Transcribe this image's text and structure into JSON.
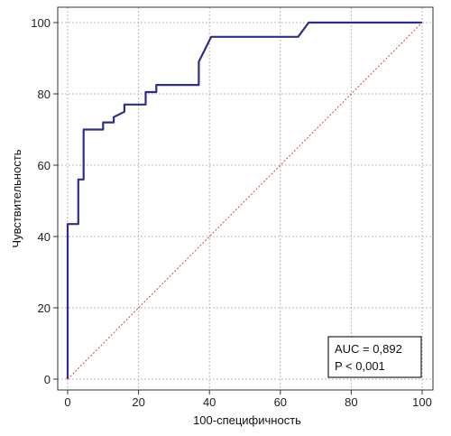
{
  "chart_data": {
    "type": "line",
    "xlabel": "100-специфичность",
    "ylabel": "Чувствительность",
    "xlim": [
      0,
      100
    ],
    "ylim": [
      0,
      100
    ],
    "x_ticks": [
      "0",
      "20",
      "40",
      "60",
      "80",
      "100"
    ],
    "y_ticks": [
      "0",
      "20",
      "40",
      "60",
      "80",
      "100"
    ],
    "grid": true,
    "series": [
      {
        "color": "#2e2e8a",
        "points": [
          [
            0,
            0
          ],
          [
            0,
            43.5
          ],
          [
            3,
            43.5
          ],
          [
            3,
            56
          ],
          [
            4.5,
            56
          ],
          [
            4.5,
            70
          ],
          [
            10,
            70
          ],
          [
            10,
            72
          ],
          [
            13,
            72
          ],
          [
            13,
            73.5
          ],
          [
            16,
            75
          ],
          [
            16,
            77
          ],
          [
            22,
            77
          ],
          [
            22,
            80.5
          ],
          [
            25,
            80.5
          ],
          [
            25,
            82.5
          ],
          [
            37,
            82.5
          ],
          [
            37,
            89
          ],
          [
            38.5,
            92
          ],
          [
            40.5,
            96
          ],
          [
            65,
            96
          ],
          [
            68,
            100
          ],
          [
            100,
            100
          ]
        ]
      },
      {
        "color": "#e04040",
        "style": "dotted",
        "points": [
          [
            0,
            0
          ],
          [
            100,
            100
          ]
        ]
      }
    ],
    "annotation": {
      "lines": [
        "AUC = 0,892",
        "P < 0,001"
      ]
    }
  }
}
